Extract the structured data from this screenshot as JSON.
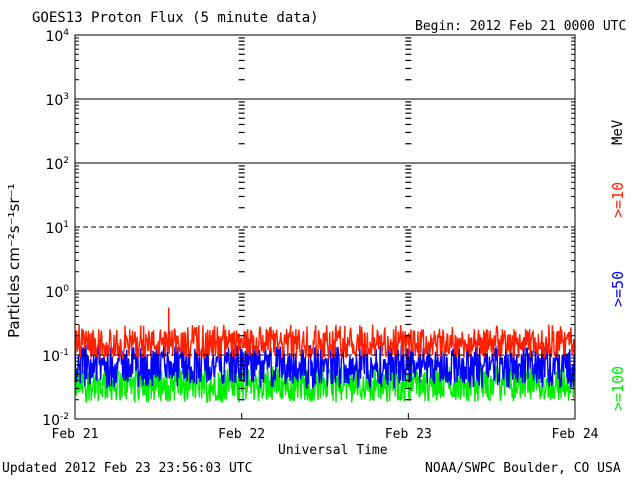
{
  "header": {
    "title": "GOES13 Proton Flux (5 minute data)",
    "begin": "Begin: 2012 Feb 21 0000 UTC"
  },
  "footer": {
    "updated": "Updated 2012 Feb 23 23:56:03 UTC",
    "credit": "NOAA/SWPC Boulder, CO USA"
  },
  "right_labels": {
    "unit": "MeV",
    "ch10": ">=10",
    "ch50": ">=50",
    "ch100": ">=100"
  },
  "chart_data": {
    "type": "line",
    "title": "GOES13 Proton Flux (5 minute data)",
    "xlabel": "Universal Time",
    "ylabel": "Particles cm⁻²s⁻¹sr⁻¹",
    "y_scale": "log",
    "ylim": [
      0.01,
      10000
    ],
    "y_ticks": [
      {
        "value": 10000,
        "base": "10",
        "exp": "4"
      },
      {
        "value": 1000,
        "base": "10",
        "exp": "3"
      },
      {
        "value": 100,
        "base": "10",
        "exp": "2"
      },
      {
        "value": 10,
        "base": "10",
        "exp": "1"
      },
      {
        "value": 1,
        "base": "10",
        "exp": "0"
      },
      {
        "value": 0.1,
        "base": "10",
        "exp": "-1"
      },
      {
        "value": 0.01,
        "base": "10",
        "exp": "-2"
      }
    ],
    "x_ticks": [
      "Feb 21",
      "Feb 22",
      "Feb 23",
      "Feb 24"
    ],
    "xlim": [
      "2012-02-21 00:00",
      "2012-02-24 00:00"
    ],
    "reference_lines": [
      {
        "value": 1000,
        "style": "solid"
      },
      {
        "value": 100,
        "style": "solid"
      },
      {
        "value": 10,
        "style": "dashed"
      },
      {
        "value": 1,
        "style": "solid"
      },
      {
        "value": 0.1,
        "style": "dashed"
      }
    ],
    "grid": "dashed vertical at day boundaries",
    "series": [
      {
        "name": ">=10 MeV",
        "color": "#ff2000",
        "typical": 0.15,
        "low": 0.09,
        "high": 0.3,
        "spike": {
          "time": "2012-02-21 13:30",
          "value": 0.55
        }
      },
      {
        "name": ">=50 MeV",
        "color": "#0000ff",
        "typical": 0.07,
        "low": 0.03,
        "high": 0.14
      },
      {
        "name": ">=100 MeV",
        "color": "#00ee00",
        "typical": 0.035,
        "low": 0.018,
        "high": 0.07
      }
    ]
  }
}
